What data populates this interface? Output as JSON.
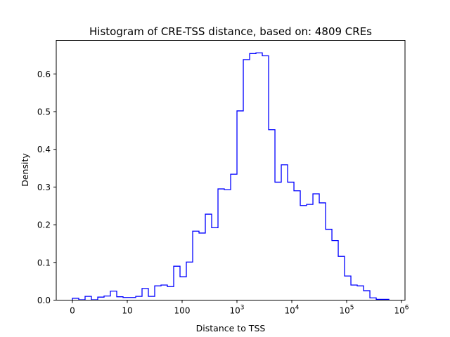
{
  "chart_data": {
    "type": "histogram-step",
    "title": "Histogram of CRE-TSS distance, based on: 4809 CREs",
    "xlabel": "Distance to TSS",
    "ylabel": "Density",
    "x_scale": "log10 (with 0)",
    "x_ticks": [
      {
        "value": 0,
        "label": "0"
      },
      {
        "value": 1,
        "label": "10"
      },
      {
        "value": 2,
        "label": "100"
      },
      {
        "value": 3,
        "base": "10",
        "exp": "3"
      },
      {
        "value": 4,
        "base": "10",
        "exp": "4"
      },
      {
        "value": 5,
        "base": "10",
        "exp": "5"
      },
      {
        "value": 6,
        "base": "10",
        "exp": "6"
      }
    ],
    "y_ticks": [
      "0.0",
      "0.1",
      "0.2",
      "0.3",
      "0.4",
      "0.5",
      "0.6"
    ],
    "ylim": [
      0,
      0.69
    ],
    "xlim_log10": [
      -0.3,
      6.36
    ],
    "bin_start_log10": 0,
    "bin_width_log10": 0.1154,
    "values": [
      0.005,
      0.001,
      0.01,
      0.001,
      0.008,
      0.011,
      0.024,
      0.009,
      0.007,
      0.007,
      0.01,
      0.031,
      0.01,
      0.038,
      0.04,
      0.036,
      0.09,
      0.062,
      0.101,
      0.183,
      0.178,
      0.228,
      0.192,
      0.295,
      0.293,
      0.334,
      0.502,
      0.638,
      0.654,
      0.656,
      0.648,
      0.452,
      0.313,
      0.359,
      0.313,
      0.29,
      0.251,
      0.254,
      0.282,
      0.258,
      0.188,
      0.158,
      0.116,
      0.064,
      0.04,
      0.038,
      0.025,
      0.006,
      0.002,
      0.002
    ],
    "color": "#0000ff",
    "grid": false
  }
}
